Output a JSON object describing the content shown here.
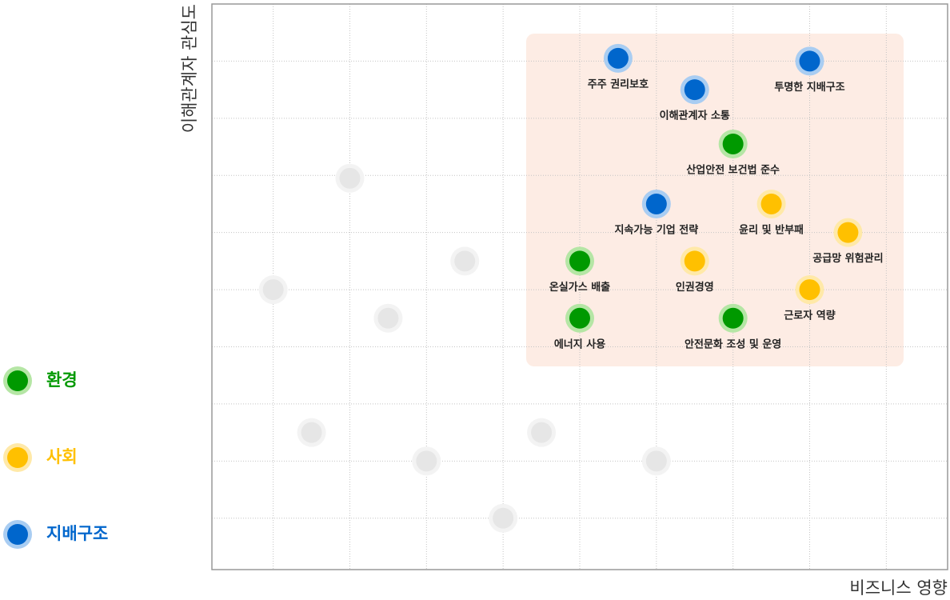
{
  "chart_data": {
    "type": "scatter",
    "x_label": "비즈니스 영향",
    "y_label": "이해관계자 관심도",
    "xlim": [
      0.2,
      9.8
    ],
    "ylim": [
      0.1,
      10
    ],
    "xticks": [
      1,
      2,
      3,
      4,
      5,
      6,
      7,
      8,
      9
    ],
    "yticks": [
      1,
      2,
      3,
      4,
      5,
      6,
      7,
      8,
      9
    ],
    "grid": true,
    "series": [
      {
        "name": "환경",
        "color": "#009900",
        "halo": "#b5e6a5",
        "x": [
          7.0,
          5.0,
          5.0,
          7.0
        ],
        "values": [
          7.55,
          5.5,
          4.5,
          4.5
        ],
        "labels": [
          "산업안전 보건법 준수",
          "온실가스 배출",
          "에너지 사용",
          "안전문화 조성 및 운영"
        ]
      },
      {
        "name": "사회",
        "color": "#ffc000",
        "halo": "#ffe9a8",
        "x": [
          7.5,
          8.5,
          6.5,
          8.0
        ],
        "values": [
          6.5,
          6.0,
          5.5,
          5.0
        ],
        "labels": [
          "윤리 및 반부패",
          "공급망 위험관리",
          "인권경영",
          "근로자 역량"
        ]
      },
      {
        "name": "지배구조",
        "color": "#0066cc",
        "halo": "#a9cdf2",
        "x": [
          5.5,
          8.0,
          6.5,
          6.0
        ],
        "values": [
          9.05,
          9.0,
          8.5,
          6.5
        ],
        "labels": [
          "주주 권리보호",
          "투명한 지배구조",
          "이해관계자 소통",
          "지속가능 기업 전략"
        ]
      },
      {
        "color": "#e6e6e6",
        "halo": "#f3f3f3",
        "x": [
          2.0,
          3.5,
          1.0,
          2.5,
          1.5,
          3.0,
          4.5,
          6.0,
          4.0
        ],
        "values": [
          6.95,
          5.5,
          5.0,
          4.5,
          2.5,
          2.0,
          2.5,
          2.0,
          1.0
        ]
      }
    ]
  }
}
